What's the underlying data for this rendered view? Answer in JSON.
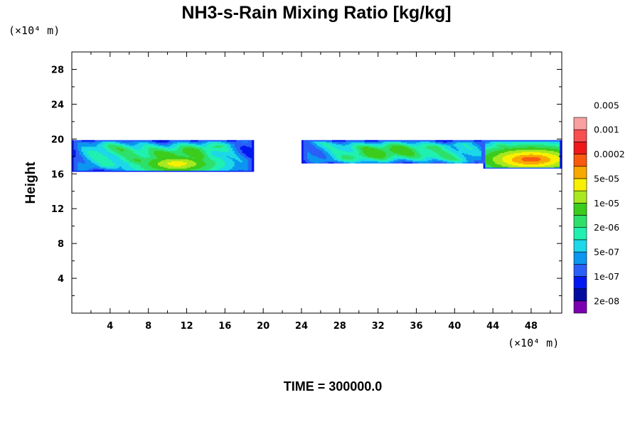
{
  "chart_data": {
    "type": "heatmap",
    "title": "NH3-s-Rain Mixing Ratio [kg/kg]",
    "xlabel": "",
    "ylabel": "Height",
    "x_unit_label": "(×10⁴ m)",
    "y_unit_label": "(×10⁴ m)",
    "x_ticks": [
      "4",
      "8",
      "12",
      "16",
      "20",
      "24",
      "28",
      "32",
      "36",
      "40",
      "44",
      "48"
    ],
    "y_ticks": [
      "4",
      "8",
      "12",
      "16",
      "20",
      "24",
      "28"
    ],
    "xlim": [
      0,
      51.2
    ],
    "ylim": [
      0,
      30
    ],
    "footer": "TIME = 300000.0",
    "colorbar": {
      "colors": [
        "#7a00b0",
        "#000ca0",
        "#0018f0",
        "#2a5ff8",
        "#0b96f0",
        "#1cd8e8",
        "#20f0b0",
        "#2ee06a",
        "#3ccc1c",
        "#a8e820",
        "#f8f000",
        "#f8a800",
        "#f85a10",
        "#f01818",
        "#f85050",
        "#f8a0a0"
      ],
      "labels": [
        "2e-08",
        "1e-07",
        "5e-07",
        "2e-06",
        "1e-05",
        "5e-05",
        "0.0002",
        "0.001",
        "0.005"
      ]
    },
    "regions": [
      {
        "x": [
          0.0,
          19.0
        ],
        "y": [
          16.3,
          19.9
        ],
        "peak_level": 11,
        "peak": {
          "x": 11.0,
          "y": 17.2
        }
      },
      {
        "x": [
          24.0,
          43.5
        ],
        "y": [
          17.2,
          19.9
        ],
        "peak_level": 8,
        "peak": {
          "x": 31.0,
          "y": 18.3
        }
      },
      {
        "x": [
          43.0,
          51.2
        ],
        "y": [
          16.6,
          19.9
        ],
        "peak_level": 13,
        "peak": {
          "x": 48.0,
          "y": 17.7
        }
      }
    ]
  }
}
